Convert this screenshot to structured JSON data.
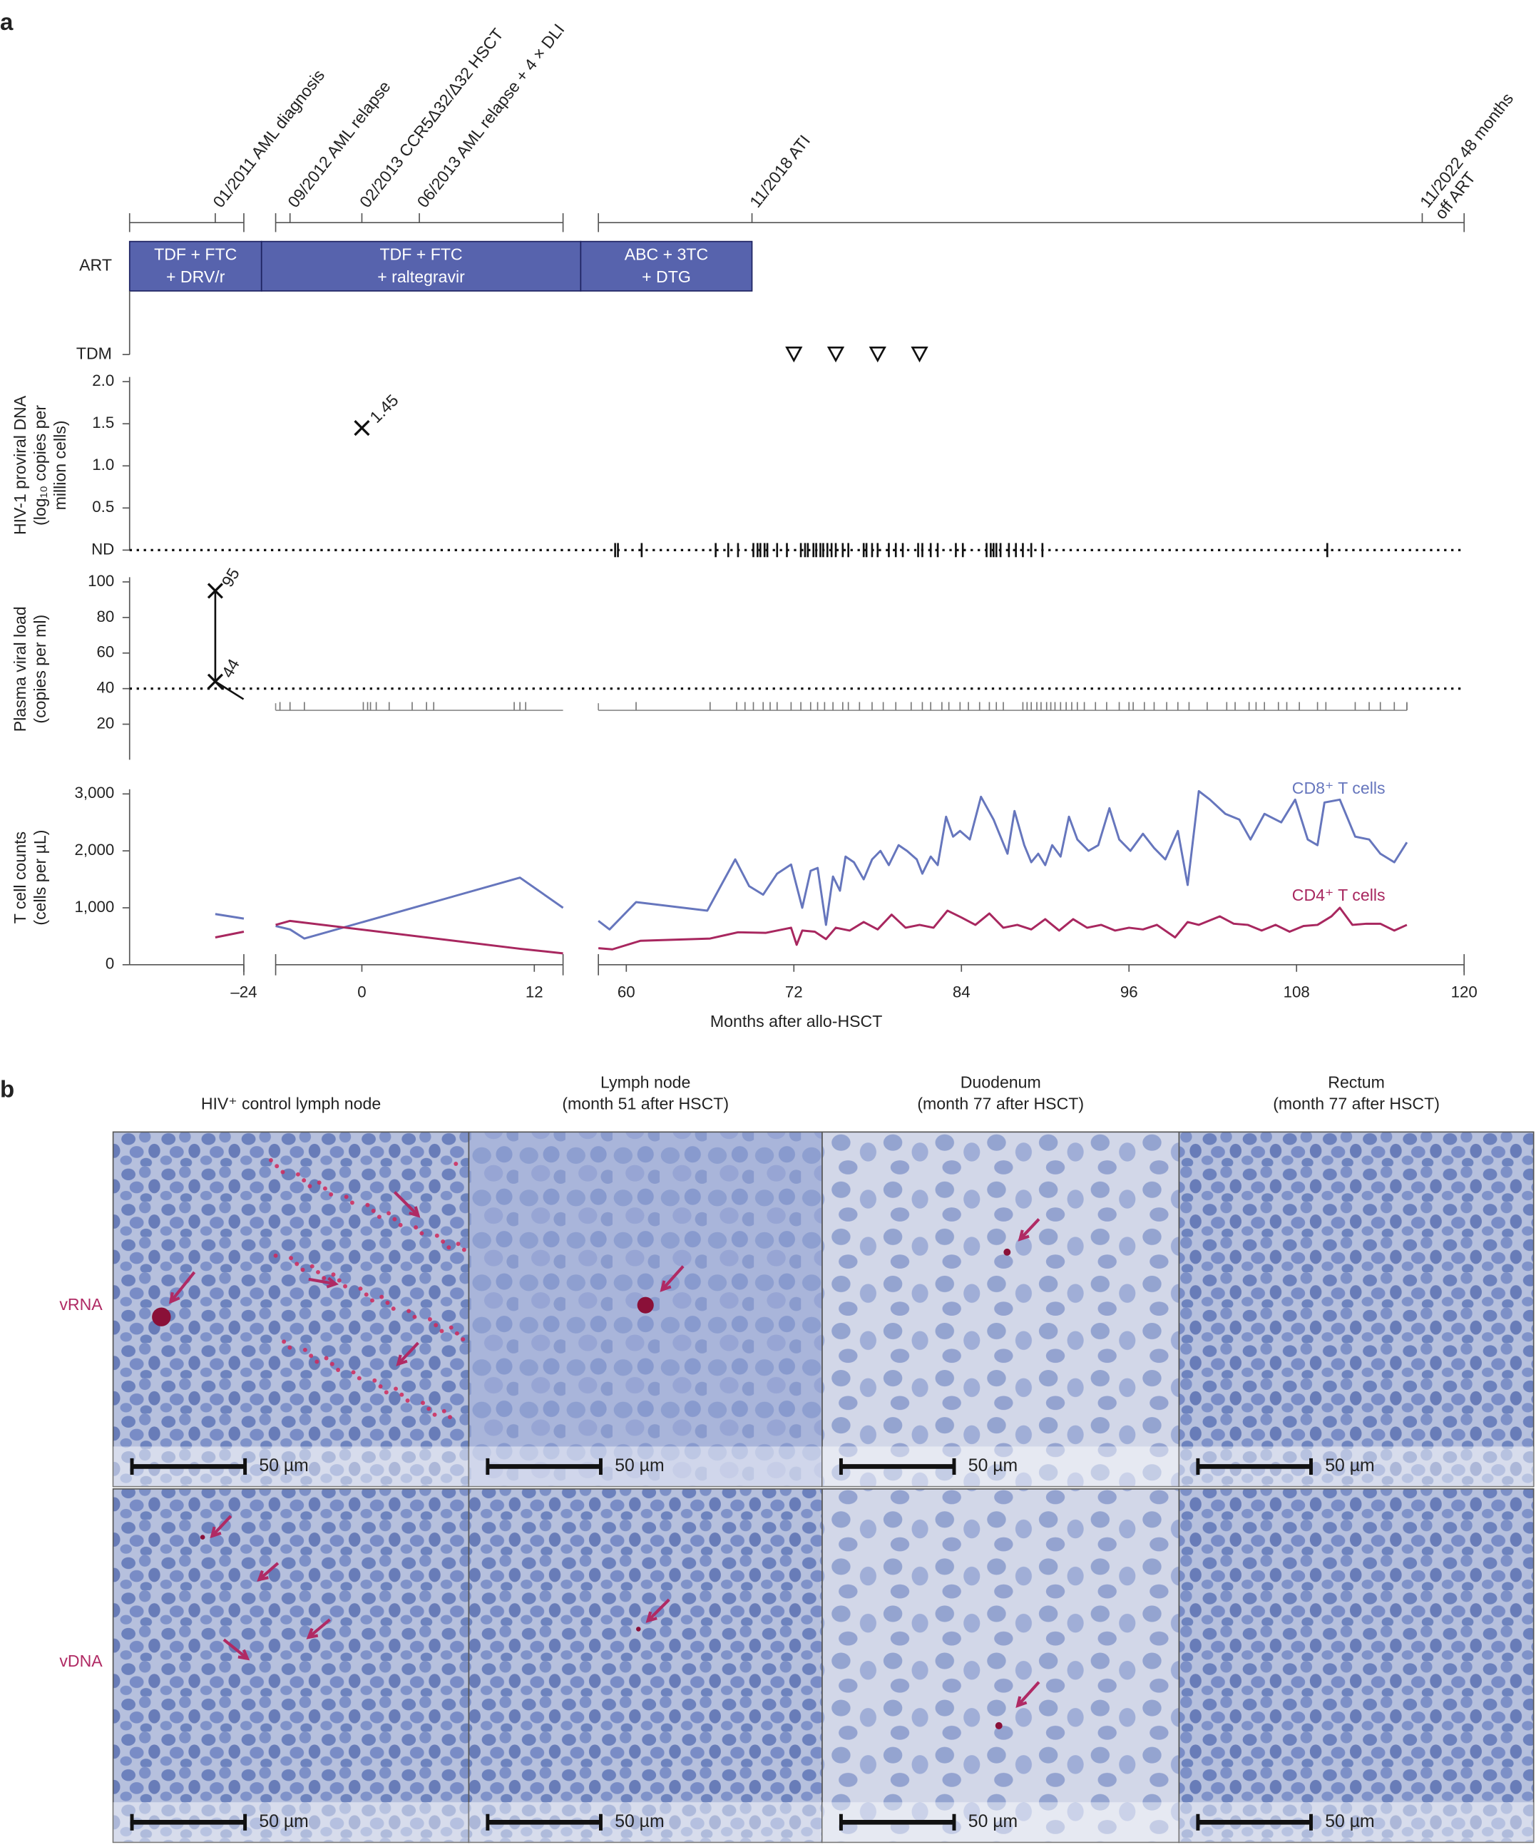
{
  "panel_labels": [
    "a",
    "b"
  ],
  "chart_data": {
    "type": "timeline",
    "xlabel": "Months after allo-HSCT",
    "xsegments": [
      [
        -32,
        -24
      ],
      [
        -6,
        14
      ],
      [
        58,
        120
      ]
    ],
    "xticks": [
      {
        "value": -24,
        "label": "–24"
      },
      0,
      12,
      60,
      72,
      84,
      96,
      108,
      120
    ],
    "events": [
      {
        "label": [
          "01/2011 AML diagnosis"
        ],
        "month": -26
      },
      {
        "label": [
          "09/2012 AML relapse"
        ],
        "month": -5
      },
      {
        "label": [
          "02/2013 CCR5Δ32/Δ32 HSCT"
        ],
        "month": 0
      },
      {
        "label": [
          "06/2013 AML relapse + 4 × DLI"
        ],
        "month": 4
      },
      {
        "label": [
          "11/2018 ATI"
        ],
        "month": 69
      },
      {
        "label": [
          "11/2022 48 months",
          "off ART"
        ],
        "month": 117
      }
    ],
    "art": {
      "label": "ART",
      "color": "#5763ad",
      "regimens": [
        {
          "label": [
            "TDF + FTC",
            "+ DRV/r"
          ],
          "start": -32,
          "end": -14
        },
        {
          "label": [
            "TDF + FTC",
            "+ raltegravir"
          ],
          "start": -14,
          "end": 36
        },
        {
          "label": [
            "ABC + 3TC",
            "+ DTG"
          ],
          "start": 36,
          "end": 69
        }
      ]
    },
    "tdm": {
      "label": "TDM",
      "months": [
        72,
        75,
        78,
        81
      ]
    },
    "proviral": {
      "ylabel": [
        "HIV-1 proviral DNA",
        "(log₁₀ copies per",
        "million cells)"
      ],
      "ylim": [
        0,
        2
      ],
      "yticks": [
        {
          "value": 0,
          "label": "ND"
        },
        0.5,
        {
          "value": 1,
          "label": "1.0"
        },
        1.5,
        {
          "value": 2,
          "label": "2.0"
        }
      ],
      "points": [
        {
          "x": 0,
          "value": 1.45
        }
      ],
      "nd_months": [
        59.2,
        59.4,
        61.1,
        66.4,
        67.3,
        68.0,
        69.1,
        69.4,
        69.6,
        69.9,
        70.1,
        70.8,
        71.5,
        72.5,
        72.8,
        73.0,
        73.4,
        73.6,
        73.9,
        74.1,
        74.4,
        74.7,
        75.0,
        75.5,
        75.9,
        77.0,
        77.2,
        77.6,
        78.0,
        78.8,
        79.3,
        79.8,
        80.9,
        81.2,
        81.8,
        82.3,
        83.6,
        84.1,
        85.8,
        86.1,
        86.3,
        86.5,
        86.8,
        87.4,
        87.9,
        88.4,
        89.0,
        89.8,
        110.2
      ]
    },
    "viral_load": {
      "ylabel": [
        "Plasma viral load",
        "(copies per ml)"
      ],
      "ylim": [
        0,
        100
      ],
      "yticks": [
        20,
        40,
        60,
        80,
        100
      ],
      "detection_limit": 40,
      "points": [
        {
          "x": -26,
          "value": 95
        },
        {
          "x": -26,
          "value": 44
        }
      ],
      "undetected_months": [
        -5.7,
        -5.0,
        -4.0,
        0.1,
        0.4,
        0.6,
        1.0,
        1.9,
        3.5,
        4.5,
        5.0,
        10.6,
        11.0,
        11.4,
        60.7,
        66.0,
        67.9,
        68.5,
        69.1,
        69.8,
        70.3,
        70.8,
        71.8,
        72.5,
        73.2,
        73.7,
        74.2,
        74.8,
        75.5,
        75.9,
        76.7,
        77.6,
        78.4,
        79.3,
        80.4,
        81.2,
        81.8,
        82.6,
        83.1,
        83.9,
        84.5,
        85.3,
        86.0,
        86.5,
        87.0,
        88.4,
        88.7,
        89.0,
        89.4,
        89.7,
        90.1,
        90.4,
        90.7,
        91.1,
        91.5,
        91.9,
        92.3,
        92.8,
        93.6,
        94.4,
        95.3,
        96.0,
        96.3,
        97.1,
        97.8,
        98.7,
        99.5,
        100.3,
        101.6,
        103.0,
        103.6,
        104.6,
        105.1,
        105.7,
        106.7,
        107.3,
        108.2,
        109.5,
        110.1,
        112.2,
        113.2,
        114.0,
        115.0,
        115.9
      ]
    },
    "tcells": {
      "ylabel": [
        "T cell counts",
        "(cells per µL)"
      ],
      "ylim": [
        0,
        3000
      ],
      "yticks": [
        0,
        {
          "value": 1000,
          "label": "1,000"
        },
        {
          "value": 2000,
          "label": "2,000"
        },
        {
          "value": 3000,
          "label": "3,000"
        }
      ],
      "series": [
        {
          "name": "CD8⁺ T cells",
          "color": "#6676bd",
          "x": [
            -26,
            -24,
            -15,
            -6,
            -5,
            -4,
            11,
            14,
            36,
            58,
            58.8,
            60.7,
            65.8,
            67.8,
            68.8,
            69.8,
            70.8,
            71.8,
            72.6,
            73.2,
            73.7,
            74.3,
            74.8,
            75.3,
            75.7,
            76.3,
            77,
            77.6,
            78.2,
            78.8,
            79.5,
            80.1,
            80.8,
            81.2,
            81.8,
            82.3,
            82.9,
            83.4,
            83.9,
            84.6,
            85.4,
            86.3,
            86.8,
            87.3,
            87.8,
            88.5,
            89,
            89.5,
            90,
            90.5,
            91.1,
            91.7,
            92.3,
            93.1,
            93.8,
            94.6,
            95.3,
            96.1,
            97,
            97.8,
            98.6,
            99.5,
            100.2,
            101,
            101.8,
            102.9,
            103.9,
            104.7,
            105.7,
            106.9,
            107.9,
            108.8,
            109.5,
            110,
            111.1,
            112.2,
            113.2,
            114,
            115,
            115.9
          ],
          "values": [
            890,
            810,
            null,
            680,
            620,
            460,
            1530,
            1000,
            null,
            770,
            620,
            1100,
            950,
            1850,
            1380,
            1230,
            1600,
            1760,
            1000,
            1650,
            1700,
            700,
            1550,
            1300,
            1900,
            1800,
            1500,
            1850,
            2000,
            1750,
            2100,
            2000,
            1850,
            1600,
            1900,
            1750,
            2600,
            2250,
            2350,
            2200,
            2950,
            2550,
            2250,
            1950,
            2700,
            2100,
            1800,
            1950,
            1750,
            2100,
            1900,
            2600,
            2200,
            2000,
            2100,
            2750,
            2200,
            2000,
            2300,
            2050,
            1850,
            2350,
            1400,
            3050,
            2900,
            2650,
            2550,
            2200,
            2650,
            2500,
            2900,
            2200,
            2100,
            2850,
            2900,
            2250,
            2200,
            1950,
            1800,
            2150
          ]
        },
        {
          "name": "CD4⁺ T cells",
          "color": "#a8275f",
          "x": [
            -26,
            -24,
            -15,
            -6,
            -5,
            11,
            14,
            36,
            58,
            59,
            61,
            66,
            68,
            70,
            71.8,
            72.2,
            72.6,
            73.5,
            74.3,
            75,
            76,
            77,
            78,
            79,
            80,
            81,
            82,
            83,
            84,
            85,
            86,
            87,
            88,
            89,
            90,
            91,
            92,
            93,
            94,
            95,
            96,
            97,
            98,
            99.3,
            100.2,
            101,
            102.5,
            103.5,
            104.5,
            105.5,
            106.5,
            107.5,
            108.5,
            109.5,
            110.5,
            111.1,
            112,
            113,
            114,
            115,
            115.9
          ],
          "values": [
            480,
            580,
            null,
            700,
            770,
            280,
            200,
            null,
            290,
            270,
            420,
            460,
            570,
            560,
            650,
            350,
            600,
            580,
            450,
            650,
            600,
            750,
            620,
            880,
            650,
            700,
            650,
            950,
            830,
            700,
            900,
            650,
            700,
            620,
            800,
            600,
            800,
            650,
            700,
            600,
            650,
            620,
            700,
            480,
            750,
            700,
            850,
            720,
            700,
            600,
            700,
            580,
            680,
            700,
            850,
            1000,
            700,
            720,
            720,
            600,
            700
          ]
        }
      ]
    }
  },
  "histology": {
    "columns": [
      [
        "HIV⁺ control lymph node"
      ],
      [
        "Lymph node",
        "(month 51 after HSCT)"
      ],
      [
        "Duodenum",
        "(month 77 after HSCT)"
      ],
      [
        "Rectum",
        "(month 77 after HSCT)"
      ]
    ],
    "rows": [
      "vRNA",
      "vDNA"
    ],
    "row_color": "#b02a64",
    "scale_bar": "50 µm"
  }
}
